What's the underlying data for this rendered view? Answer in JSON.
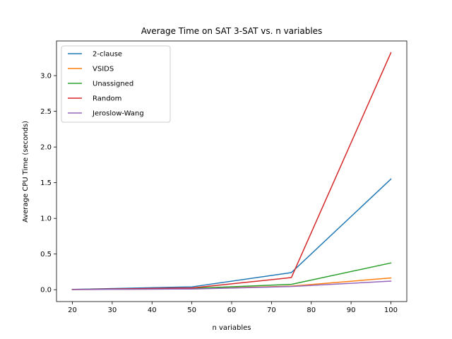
{
  "chart_data": {
    "type": "line",
    "title": "Average Time on SAT 3-SAT vs. n variables",
    "xlabel": "n variables",
    "ylabel": "Average CPU Time (seconds)",
    "x": [
      20,
      50,
      75,
      100
    ],
    "xlim": [
      16,
      104
    ],
    "ylim": [
      -0.166,
      3.486
    ],
    "xticks": [
      "20",
      "30",
      "40",
      "50",
      "60",
      "70",
      "80",
      "90",
      "100"
    ],
    "yticks": [
      "0.0",
      "0.5",
      "1.0",
      "1.5",
      "2.0",
      "2.5",
      "3.0"
    ],
    "grid": false,
    "legend_position": "top-left",
    "series": [
      {
        "name": "2-clause",
        "color": "#1f77b4",
        "values": [
          0.005,
          0.04,
          0.24,
          1.55
        ]
      },
      {
        "name": "VSIDS",
        "color": "#ff7f0e",
        "values": [
          0.002,
          0.012,
          0.05,
          0.165
        ]
      },
      {
        "name": "Unassigned",
        "color": "#2ca02c",
        "values": [
          0.003,
          0.02,
          0.075,
          0.375
        ]
      },
      {
        "name": "Random",
        "color": "#d62728",
        "values": [
          0.003,
          0.025,
          0.17,
          3.32
        ]
      },
      {
        "name": "Jeroslow-Wang",
        "color": "#9467bd",
        "values": [
          0.002,
          0.01,
          0.045,
          0.12
        ]
      }
    ]
  }
}
